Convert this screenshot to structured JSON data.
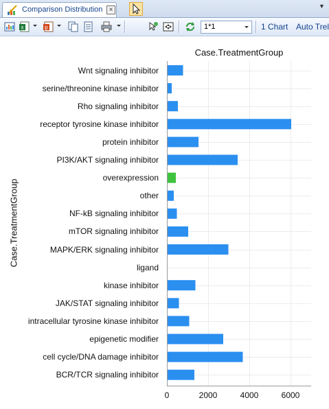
{
  "tab": {
    "label": "Comparison Distribution",
    "icon": "chart-pencil-icon",
    "close_label": "×",
    "menu_label": "▼"
  },
  "toolbar": {
    "layout_value": "1*1",
    "charts_label": "1 Chart",
    "auto_label": "Auto Trel",
    "icons": [
      "export-image-icon",
      "export-excel-icon",
      "export-ppt-icon",
      "copy-icon",
      "copy-all-icon",
      "print-icon",
      "pointer-icon",
      "zoom-icon",
      "fit-icon",
      "refresh-icon"
    ]
  },
  "colors": {
    "bar_default": "#2b8ff0",
    "bar_highlight": "#3fc33f",
    "grid": "#ececec",
    "axis": "#9a9a9a"
  },
  "chart_data": {
    "type": "bar",
    "orientation": "horizontal",
    "title": "Case.TreatmentGroup",
    "ylabel": "Case.TreatmentGroup",
    "xlabel": "",
    "xlim": [
      0,
      7000
    ],
    "xticks": [
      0,
      2000,
      4000,
      6000
    ],
    "grid": true,
    "categories": [
      "Wnt signaling inhibitor",
      "serine/threonine kinase inhibitor",
      "Rho signaling inhibitor",
      "receptor tyrosine kinase inhibitor",
      "protein inhibitor",
      "PI3K/AKT signaling inhibitor",
      "overexpression",
      "other",
      "NF-kB signaling inhibitor",
      "mTOR signaling inhibitor",
      "MAPK/ERK signaling inhibitor",
      "ligand",
      "kinase inhibitor",
      "JAK/STAT signaling inhibitor",
      "intracellular tyrosine kinase inhibitor",
      "epigenetic modifier",
      "cell cycle/DNA damage inhibitor",
      "BCR/TCR signaling inhibitor"
    ],
    "values": [
      750,
      200,
      500,
      6000,
      1500,
      3400,
      400,
      300,
      450,
      1000,
      2950,
      0,
      1350,
      550,
      1050,
      2700,
      3650,
      1300
    ],
    "highlight": [
      false,
      false,
      false,
      false,
      false,
      false,
      true,
      false,
      false,
      false,
      false,
      false,
      false,
      false,
      false,
      false,
      false,
      false
    ]
  }
}
